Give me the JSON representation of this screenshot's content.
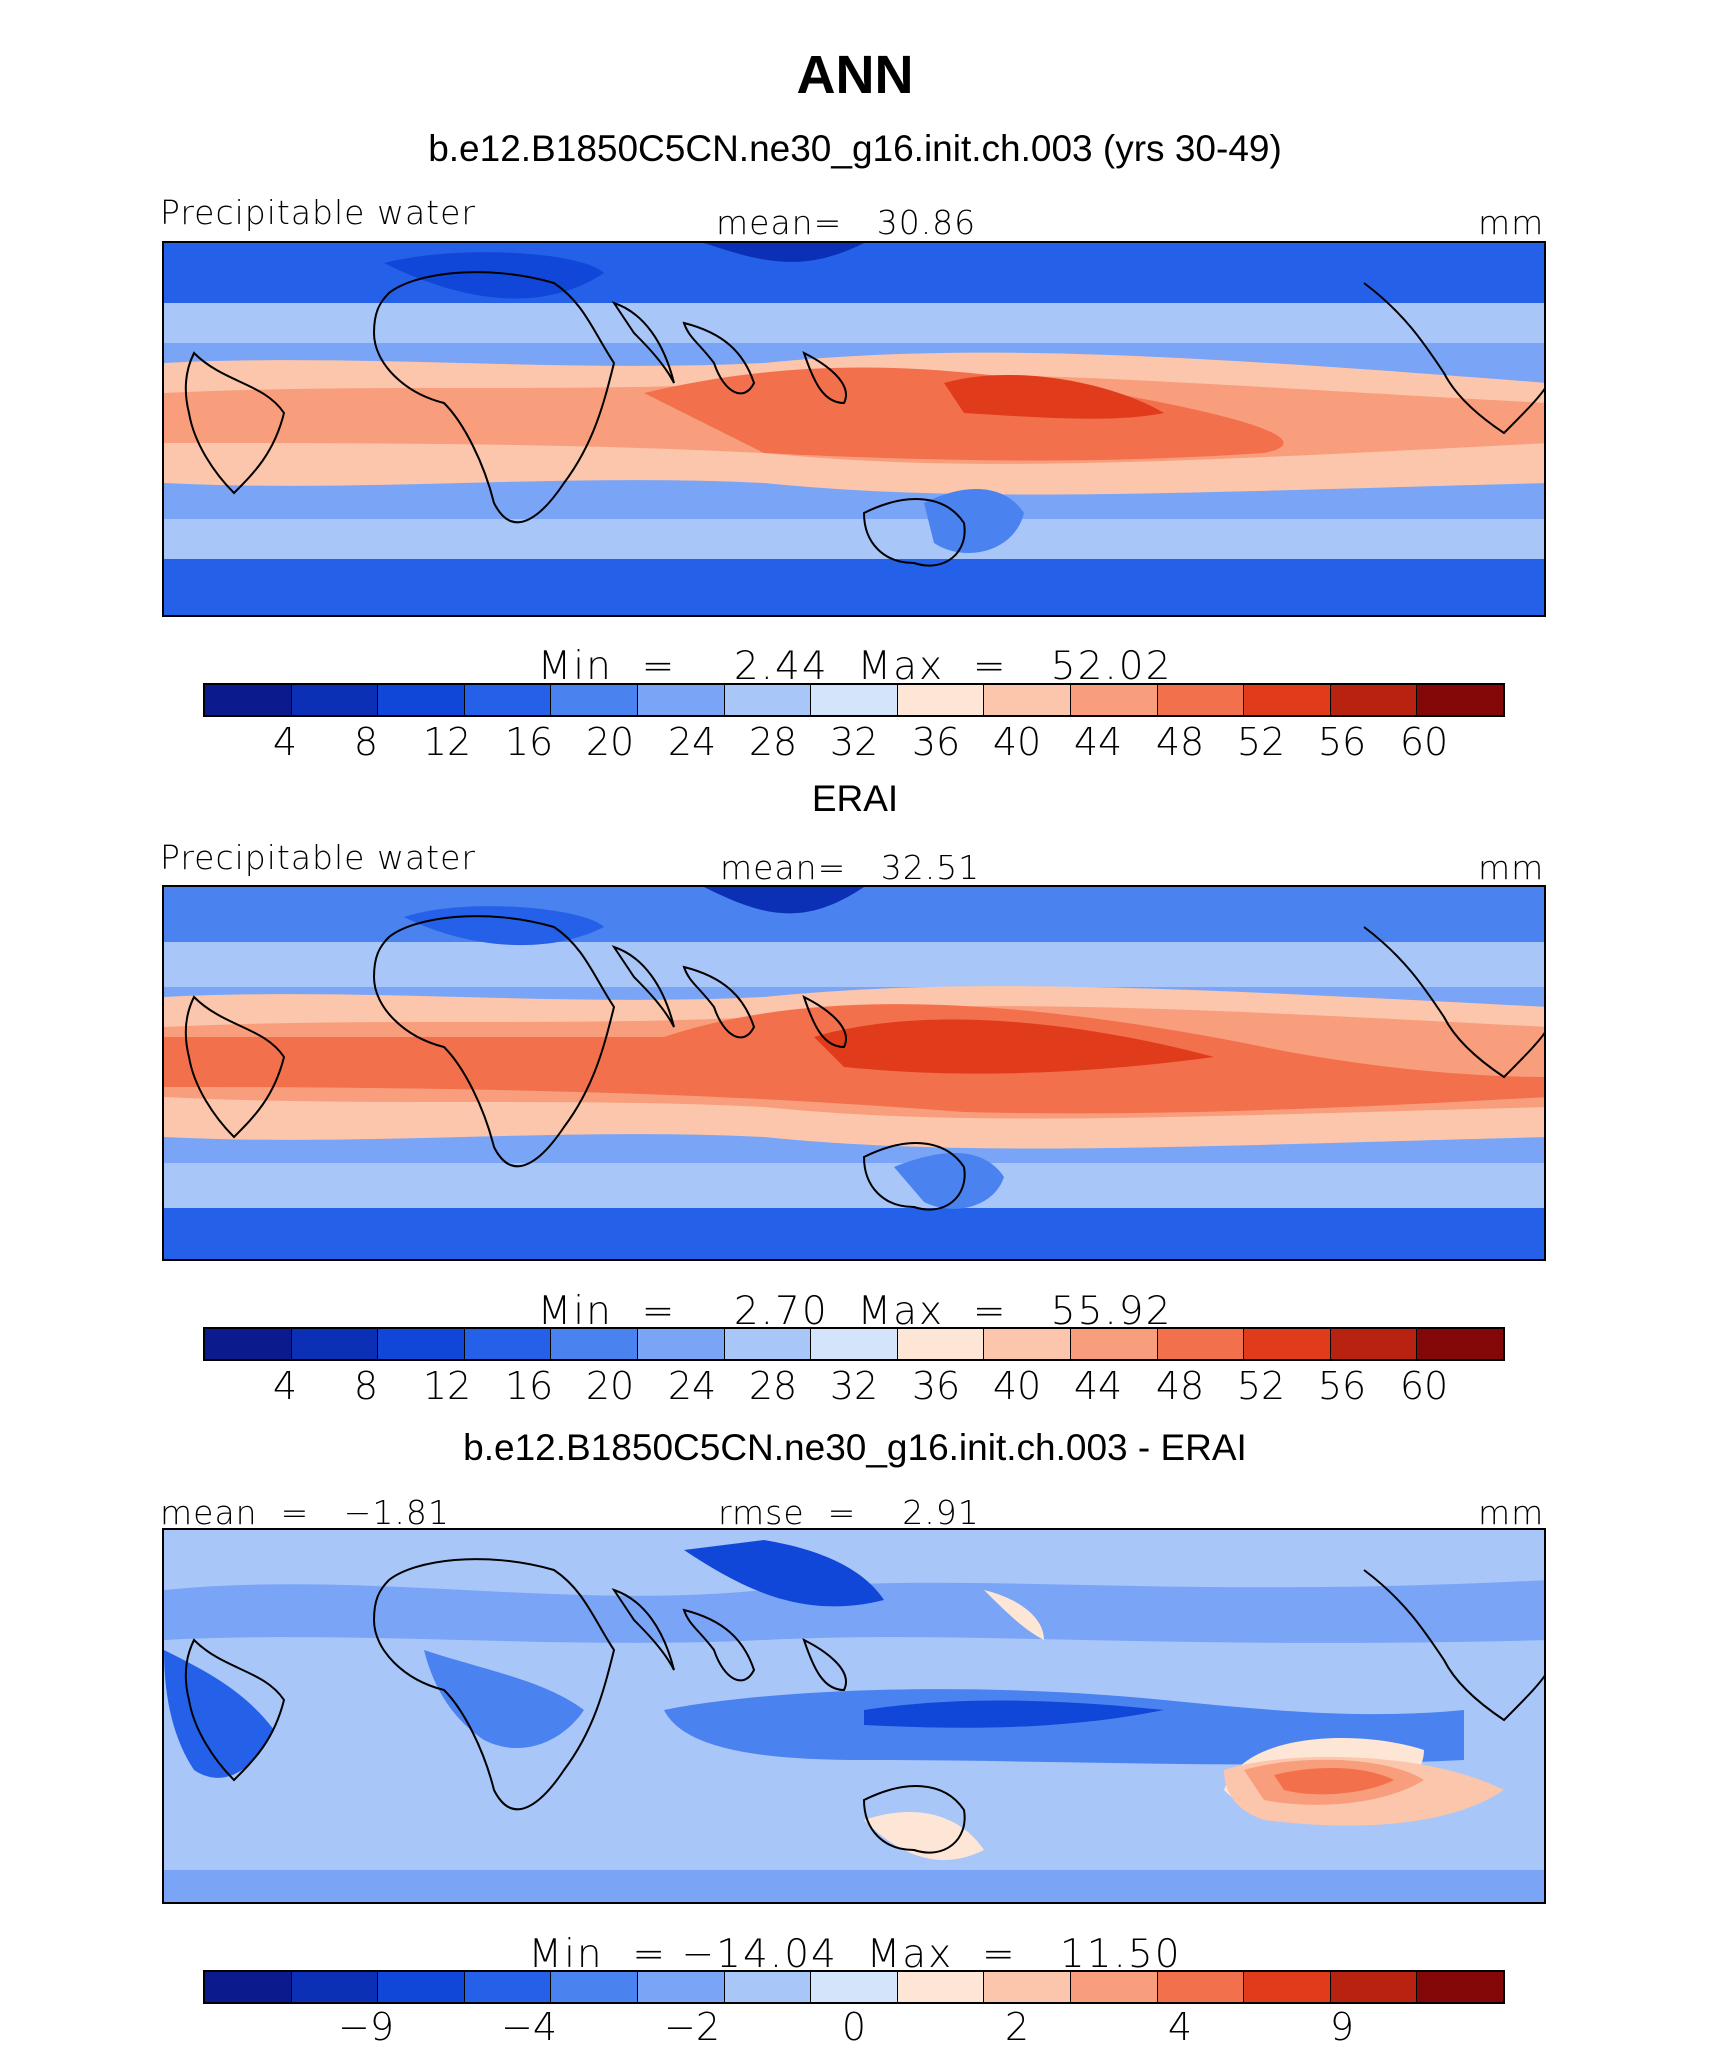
{
  "title": "ANN",
  "palette": [
    "#0b1a8c",
    "#0b2fb5",
    "#1047d8",
    "#2461e8",
    "#4a82f0",
    "#7aa4f5",
    "#a9c6f9",
    "#d4e4fb",
    "#fde6d6",
    "#fbc6ab",
    "#f89e7c",
    "#f3704d",
    "#e03c1c",
    "#b82210",
    "#850808"
  ],
  "panels": [
    {
      "heading": "b.e12.B1850C5CN.ne30_g16.init.ch.003 (yrs 30-49)",
      "left_label": "Precipitable water",
      "center_label": "mean=   30.86",
      "units": "mm",
      "minmax": "Min  =    2.44  Max  =   52.02",
      "ticks": [
        "4",
        "8",
        "12",
        "16",
        "20",
        "24",
        "28",
        "32",
        "36",
        "40",
        "44",
        "48",
        "52",
        "56",
        "60"
      ],
      "map_name": "model-precipitable-water-map"
    },
    {
      "heading": "ERAI",
      "left_label": "Precipitable water",
      "center_label": "mean=   32.51",
      "units": "mm",
      "minmax": "Min  =    2.70  Max  =   55.92",
      "ticks": [
        "4",
        "8",
        "12",
        "16",
        "20",
        "24",
        "28",
        "32",
        "36",
        "40",
        "44",
        "48",
        "52",
        "56",
        "60"
      ],
      "map_name": "erai-precipitable-water-map"
    },
    {
      "heading": "b.e12.B1850C5CN.ne30_g16.init.ch.003 - ERAI",
      "left_label": "mean  =   −1.81",
      "center_label": "rmse  =    2.91",
      "units": "mm",
      "minmax": "Min  = −14.04  Max  =   11.50",
      "ticks": [
        "−9",
        "−4",
        "−2",
        "0",
        "2",
        "4",
        "9"
      ],
      "map_name": "difference-map"
    }
  ]
}
